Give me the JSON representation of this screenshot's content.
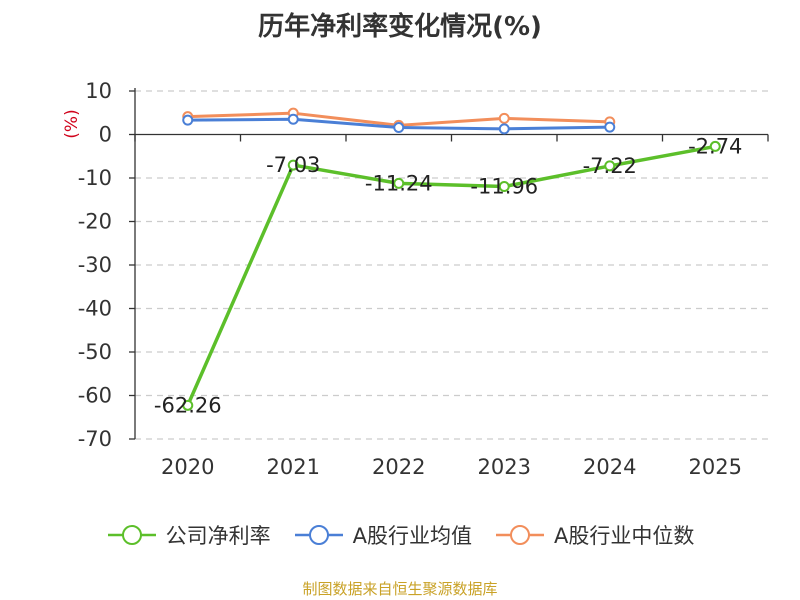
{
  "chart_data": {
    "type": "line",
    "title": "历年净利率变化情况(%)",
    "ylabel": "(%)",
    "categories": [
      "2020",
      "2021",
      "2022",
      "2023",
      "2024",
      "2025"
    ],
    "ylim": [
      -70,
      10
    ],
    "yticks": [
      10,
      0,
      -10,
      -20,
      -30,
      -40,
      -50,
      -60,
      -70
    ],
    "grid": true,
    "legend_position": "bottom",
    "series": [
      {
        "name": "公司净利率",
        "color": "#5cbf2a",
        "values": [
          -62.26,
          -7.03,
          -11.24,
          -11.96,
          -7.22,
          -2.74
        ],
        "labels": [
          "-62.26",
          "-7.03",
          "-11.24",
          "-11.96",
          "-7.22",
          "-2.74"
        ]
      },
      {
        "name": "A股行业均值",
        "color": "#4a7fd6",
        "values": [
          3.3,
          3.5,
          1.6,
          1.3,
          1.7,
          null
        ]
      },
      {
        "name": "A股行业中位数",
        "color": "#f28e5b",
        "values": [
          4.1,
          4.9,
          2.1,
          3.7,
          2.9,
          null
        ]
      }
    ]
  },
  "source": "制图数据来自恒生聚源数据库"
}
